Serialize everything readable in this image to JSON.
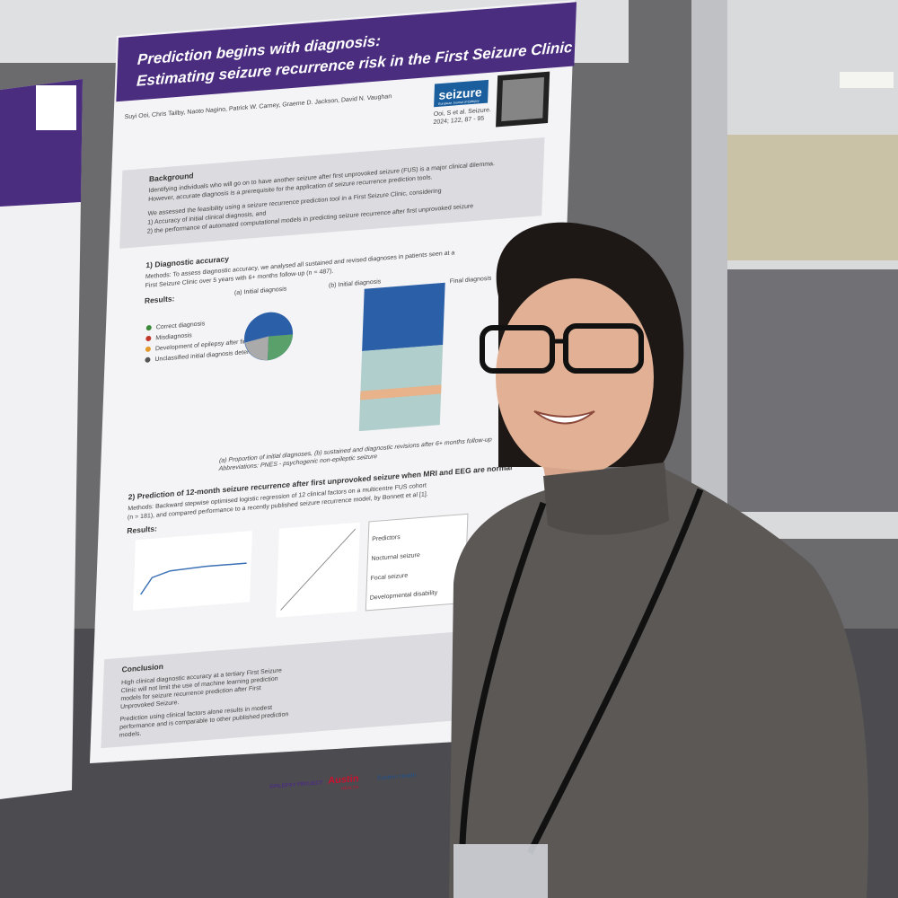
{
  "poster": {
    "title_line1": "Prediction begins with diagnosis:",
    "title_line2": "Estimating seizure recurrence risk in the First Seizure Clinic",
    "authors": "Suyi Ooi, Chris Tailby, Naoto Nagino, Patrick W. Carney, Graeme D. Jackson, David N. Vaughan",
    "journal": "seizure",
    "journal_subtitle": "European Journal of Epilepsy",
    "citation_line1": "Ooi, S et al. Seizure.",
    "citation_line2": "2024; 122, 87 - 95",
    "background": {
      "heading": "Background",
      "lines": [
        "Identifying individuals who will go on to have another seizure after first unprovoked seizure (FUS) is a major clinical dilemma.",
        "However, accurate diagnosis is a prerequisite for the application of seizure recurrence prediction tools.",
        "We assessed the feasibility using a seizure recurrence prediction tool in a First Seizure Clinic, considering",
        "1) Accuracy of initial clinical diagnosis, and",
        "2) the performance of automated computational models in predicting seizure recurrence after first unprovoked seizure"
      ]
    },
    "section1": {
      "heading": "1) Diagnostic accuracy",
      "methods_line1": "Methods: To assess diagnostic accuracy, we analysed all sustained and revised diagnoses in patients seen at a",
      "methods_line2": "First Seizure Clinic over 5 years with 6+ months follow-up (n = 487).",
      "results": "Results:",
      "legend": [
        "Correct diagnosis",
        "Misdiagnosis",
        "Development of epilepsy after first seizure",
        "Unclassified initial diagnosis determined"
      ],
      "panel_a": "(a) Initial diagnosis",
      "panel_b": "(b) Initial diagnosis",
      "final": "Final diagnosis",
      "caption": "(a) Proportion of initial diagnoses, (b) sustained and diagnostic revisions after 6+ months follow-up",
      "abbreviations": "Abbreviations: PNES - psychogenic non-epileptic seizure"
    },
    "section2": {
      "heading": "2) Prediction of 12-month seizure recurrence after first unprovoked seizure when MRI and EEG are normal",
      "methods_line1": "Methods: Backward stepwise optimised logistic regression of 12 clinical factors on a multicentre FUS cohort",
      "methods_line2": "(n = 181), and compared performance to a recently published seizure recurrence model, by Bonnett et al [1].",
      "results": "Results:",
      "table_rows": [
        "Predictors",
        "Nocturnal seizure",
        "Focal seizure",
        "Developmental disability"
      ]
    },
    "conclusion": {
      "heading": "Conclusion",
      "lines": [
        "High clinical diagnostic accuracy at a tertiary First Seizure",
        "Clinic will not limit the use of machine learning prediction",
        "models for seizure recurrence prediction after First",
        "Unprovoked Seizure.",
        "Prediction using clinical factors alone results in modest",
        "performance and is comparable to other published prediction",
        "models."
      ]
    },
    "logos": [
      "EPILEPSY PROJECT",
      "Austin",
      "HEALTH",
      "Eastern Health"
    ]
  }
}
